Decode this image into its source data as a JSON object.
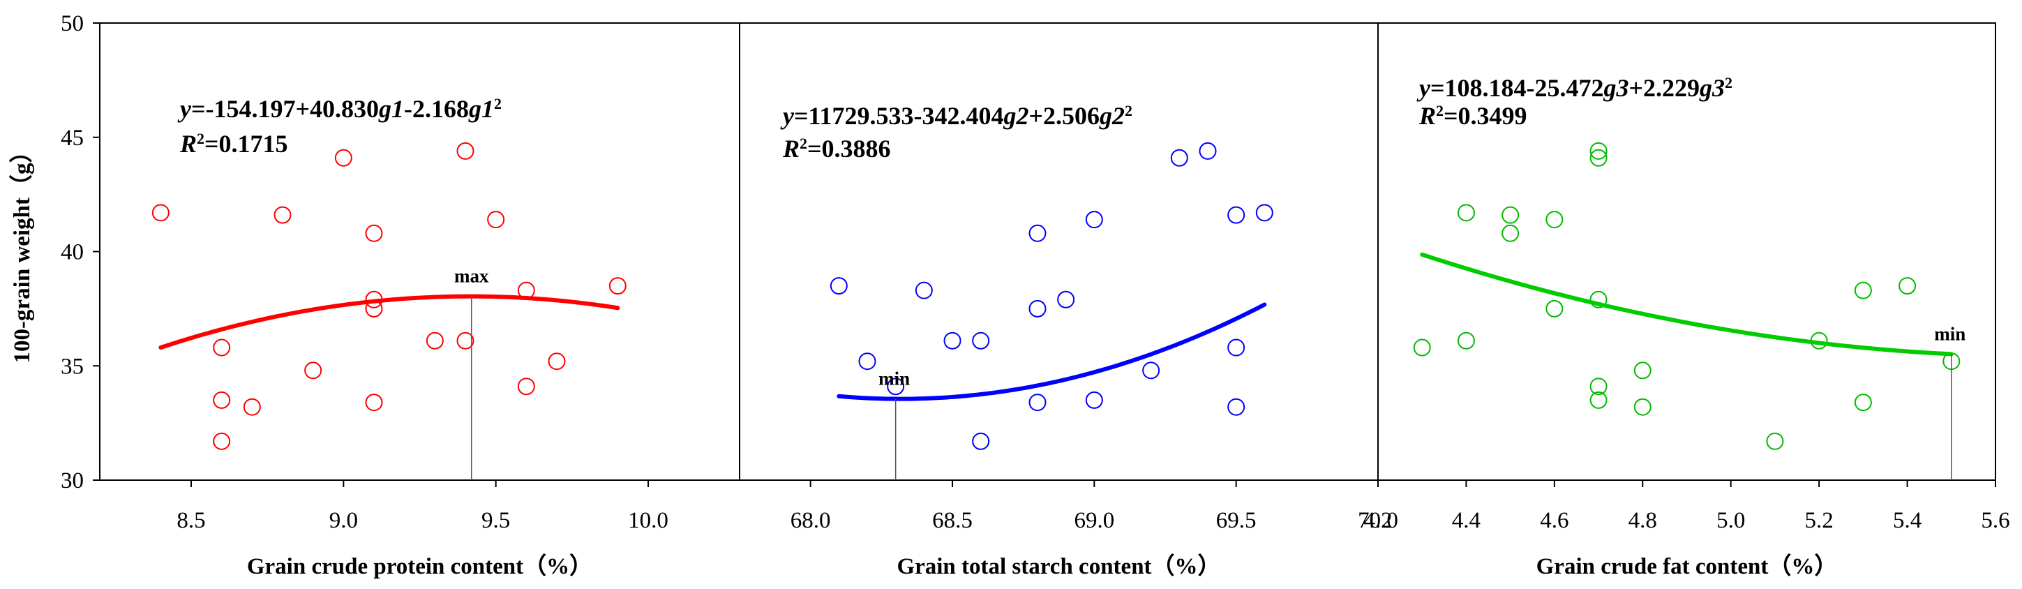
{
  "figure": {
    "ylabel": "100-grain weight（g）",
    "ylim": [
      30,
      50
    ],
    "yticks": [
      30,
      35,
      40,
      45,
      50
    ]
  },
  "chart_data": [
    {
      "type": "scatter",
      "color": "#ff0000",
      "fit_color": "#ff0000",
      "xlabel": "Grain crude protein content（%）",
      "xlim": [
        8.2,
        10.3
      ],
      "xticks": [
        "8.5",
        "9.0",
        "9.5",
        "10.0"
      ],
      "eq_line1": [
        {
          "t": "y",
          "i": true
        },
        {
          "t": "=-154.197+40.830"
        },
        {
          "t": "g1",
          "i": true
        },
        {
          "t": "-2.168"
        },
        {
          "t": "g1",
          "i": true
        },
        {
          "t": "2",
          "sup": true
        }
      ],
      "eq_line2": [
        {
          "t": "R",
          "i": true
        },
        {
          "t": "2",
          "sup": true
        },
        {
          "t": "=0.1715"
        }
      ],
      "fit": {
        "a": -154.197,
        "b": 40.83,
        "c": -2.168,
        "x_from": 8.4,
        "x_to": 9.9
      },
      "annotation": {
        "label": "max",
        "x": 9.42
      },
      "points": [
        [
          8.4,
          41.7
        ],
        [
          8.6,
          35.8
        ],
        [
          8.6,
          33.5
        ],
        [
          8.6,
          31.7
        ],
        [
          8.7,
          33.2
        ],
        [
          8.8,
          41.6
        ],
        [
          8.9,
          34.8
        ],
        [
          9.0,
          44.1
        ],
        [
          9.1,
          40.8
        ],
        [
          9.1,
          37.9
        ],
        [
          9.1,
          37.5
        ],
        [
          9.1,
          33.4
        ],
        [
          9.3,
          36.1
        ],
        [
          9.4,
          44.4
        ],
        [
          9.4,
          36.1
        ],
        [
          9.5,
          41.4
        ],
        [
          9.6,
          38.3
        ],
        [
          9.6,
          34.1
        ],
        [
          9.7,
          35.2
        ],
        [
          9.9,
          38.5
        ]
      ]
    },
    {
      "type": "scatter",
      "color": "#0000ff",
      "fit_color": "#0000ff",
      "xlabel": "Grain total starch content（%）",
      "xlim": [
        67.75,
        70.0
      ],
      "xticks": [
        "68.0",
        "68.5",
        "69.0",
        "69.5",
        "70.0"
      ],
      "eq_line1": [
        {
          "t": "y",
          "i": true
        },
        {
          "t": "=11729.533-342.404"
        },
        {
          "t": "g2",
          "i": true
        },
        {
          "t": "+2.506"
        },
        {
          "t": "g2",
          "i": true
        },
        {
          "t": "2",
          "sup": true
        }
      ],
      "eq_line2": [
        {
          "t": "R",
          "i": true
        },
        {
          "t": "2",
          "sup": true
        },
        {
          "t": "=0.3886"
        }
      ],
      "fit": {
        "a": 11729.533,
        "b": -342.404,
        "c": 2.506,
        "x_from": 68.1,
        "x_to": 69.6
      },
      "annotation": {
        "label": "min",
        "x": 68.3
      },
      "points": [
        [
          68.1,
          38.5
        ],
        [
          68.2,
          35.2
        ],
        [
          68.3,
          34.1
        ],
        [
          68.4,
          38.3
        ],
        [
          68.5,
          36.1
        ],
        [
          68.6,
          36.1
        ],
        [
          68.6,
          31.7
        ],
        [
          68.8,
          40.8
        ],
        [
          68.8,
          37.5
        ],
        [
          68.8,
          33.4
        ],
        [
          68.9,
          37.9
        ],
        [
          69.0,
          41.4
        ],
        [
          69.0,
          33.5
        ],
        [
          69.2,
          34.8
        ],
        [
          69.3,
          44.1
        ],
        [
          69.4,
          44.4
        ],
        [
          69.5,
          41.6
        ],
        [
          69.5,
          35.8
        ],
        [
          69.5,
          33.2
        ],
        [
          69.6,
          41.7
        ]
      ]
    },
    {
      "type": "scatter",
      "color": "#00bb00",
      "fit_color": "#00cc00",
      "xlabel": "Grain crude fat content（%）",
      "xlim": [
        4.2,
        5.6
      ],
      "xticks": [
        "4.2",
        "4.4",
        "4.6",
        "4.8",
        "5.0",
        "5.2",
        "5.4",
        "5.6"
      ],
      "eq_line1": [
        {
          "t": "y",
          "i": true
        },
        {
          "t": "=108.184-25.472"
        },
        {
          "t": "g3",
          "i": true
        },
        {
          "t": "+2.229"
        },
        {
          "t": "g3",
          "i": true
        },
        {
          "t": "2",
          "sup": true
        }
      ],
      "eq_line2": [
        {
          "t": "R",
          "i": true
        },
        {
          "t": "2",
          "sup": true
        },
        {
          "t": "=0.3499"
        }
      ],
      "fit": {
        "a": 108.184,
        "b": -25.472,
        "c": 2.229,
        "x_from": 4.3,
        "x_to": 5.5
      },
      "annotation": {
        "label": "min",
        "x": 5.5
      },
      "points": [
        [
          4.3,
          35.8
        ],
        [
          4.4,
          41.7
        ],
        [
          4.4,
          36.1
        ],
        [
          4.5,
          41.6
        ],
        [
          4.5,
          40.8
        ],
        [
          4.6,
          41.4
        ],
        [
          4.6,
          37.5
        ],
        [
          4.7,
          44.4
        ],
        [
          4.7,
          44.1
        ],
        [
          4.7,
          37.9
        ],
        [
          4.7,
          34.1
        ],
        [
          4.7,
          33.5
        ],
        [
          4.8,
          34.8
        ],
        [
          4.8,
          33.2
        ],
        [
          5.1,
          31.7
        ],
        [
          5.2,
          36.1
        ],
        [
          5.3,
          38.3
        ],
        [
          5.3,
          33.4
        ],
        [
          5.4,
          38.5
        ],
        [
          5.5,
          35.2
        ]
      ]
    }
  ]
}
